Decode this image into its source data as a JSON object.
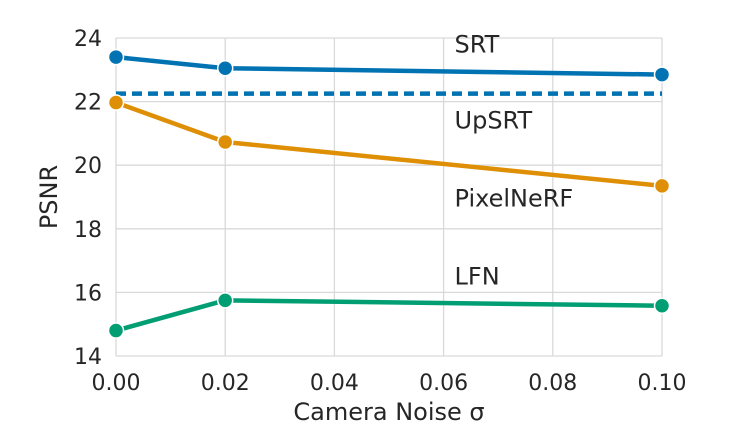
{
  "chart_data": {
    "type": "line",
    "xlabel": "Camera Noise σ",
    "ylabel": "PSNR",
    "xlim": [
      0.0,
      0.1
    ],
    "ylim": [
      14,
      24
    ],
    "xticks": [
      0.0,
      0.02,
      0.04,
      0.06,
      0.08,
      0.1
    ],
    "xtick_labels": [
      "0.00",
      "0.02",
      "0.04",
      "0.06",
      "0.08",
      "0.10"
    ],
    "yticks": [
      14,
      16,
      18,
      20,
      22,
      24
    ],
    "ytick_labels": [
      "14",
      "16",
      "18",
      "20",
      "22",
      "24"
    ],
    "grid": true,
    "series": [
      {
        "name": "SRT",
        "color": "#0173b2",
        "style": "solid",
        "markers": true,
        "x": [
          0.0,
          0.02,
          0.1
        ],
        "y": [
          23.4,
          23.05,
          22.85
        ],
        "label_at": [
          0.062,
          23.55
        ]
      },
      {
        "name": "UpSRT",
        "color": "#0173b2",
        "style": "dashed",
        "markers": false,
        "x": [
          0.0,
          0.1
        ],
        "y": [
          22.25,
          22.25
        ],
        "label_at": [
          0.062,
          21.15
        ]
      },
      {
        "name": "PixelNeRF",
        "color": "#de8f05",
        "style": "solid",
        "markers": true,
        "x": [
          0.0,
          0.02,
          0.1
        ],
        "y": [
          21.97,
          20.73,
          19.35
        ],
        "label_at": [
          0.062,
          18.7
        ]
      },
      {
        "name": "LFN",
        "color": "#029e73",
        "style": "solid",
        "markers": true,
        "x": [
          0.0,
          0.02,
          0.1
        ],
        "y": [
          14.8,
          15.75,
          15.58
        ],
        "label_at": [
          0.062,
          16.25
        ]
      }
    ]
  }
}
